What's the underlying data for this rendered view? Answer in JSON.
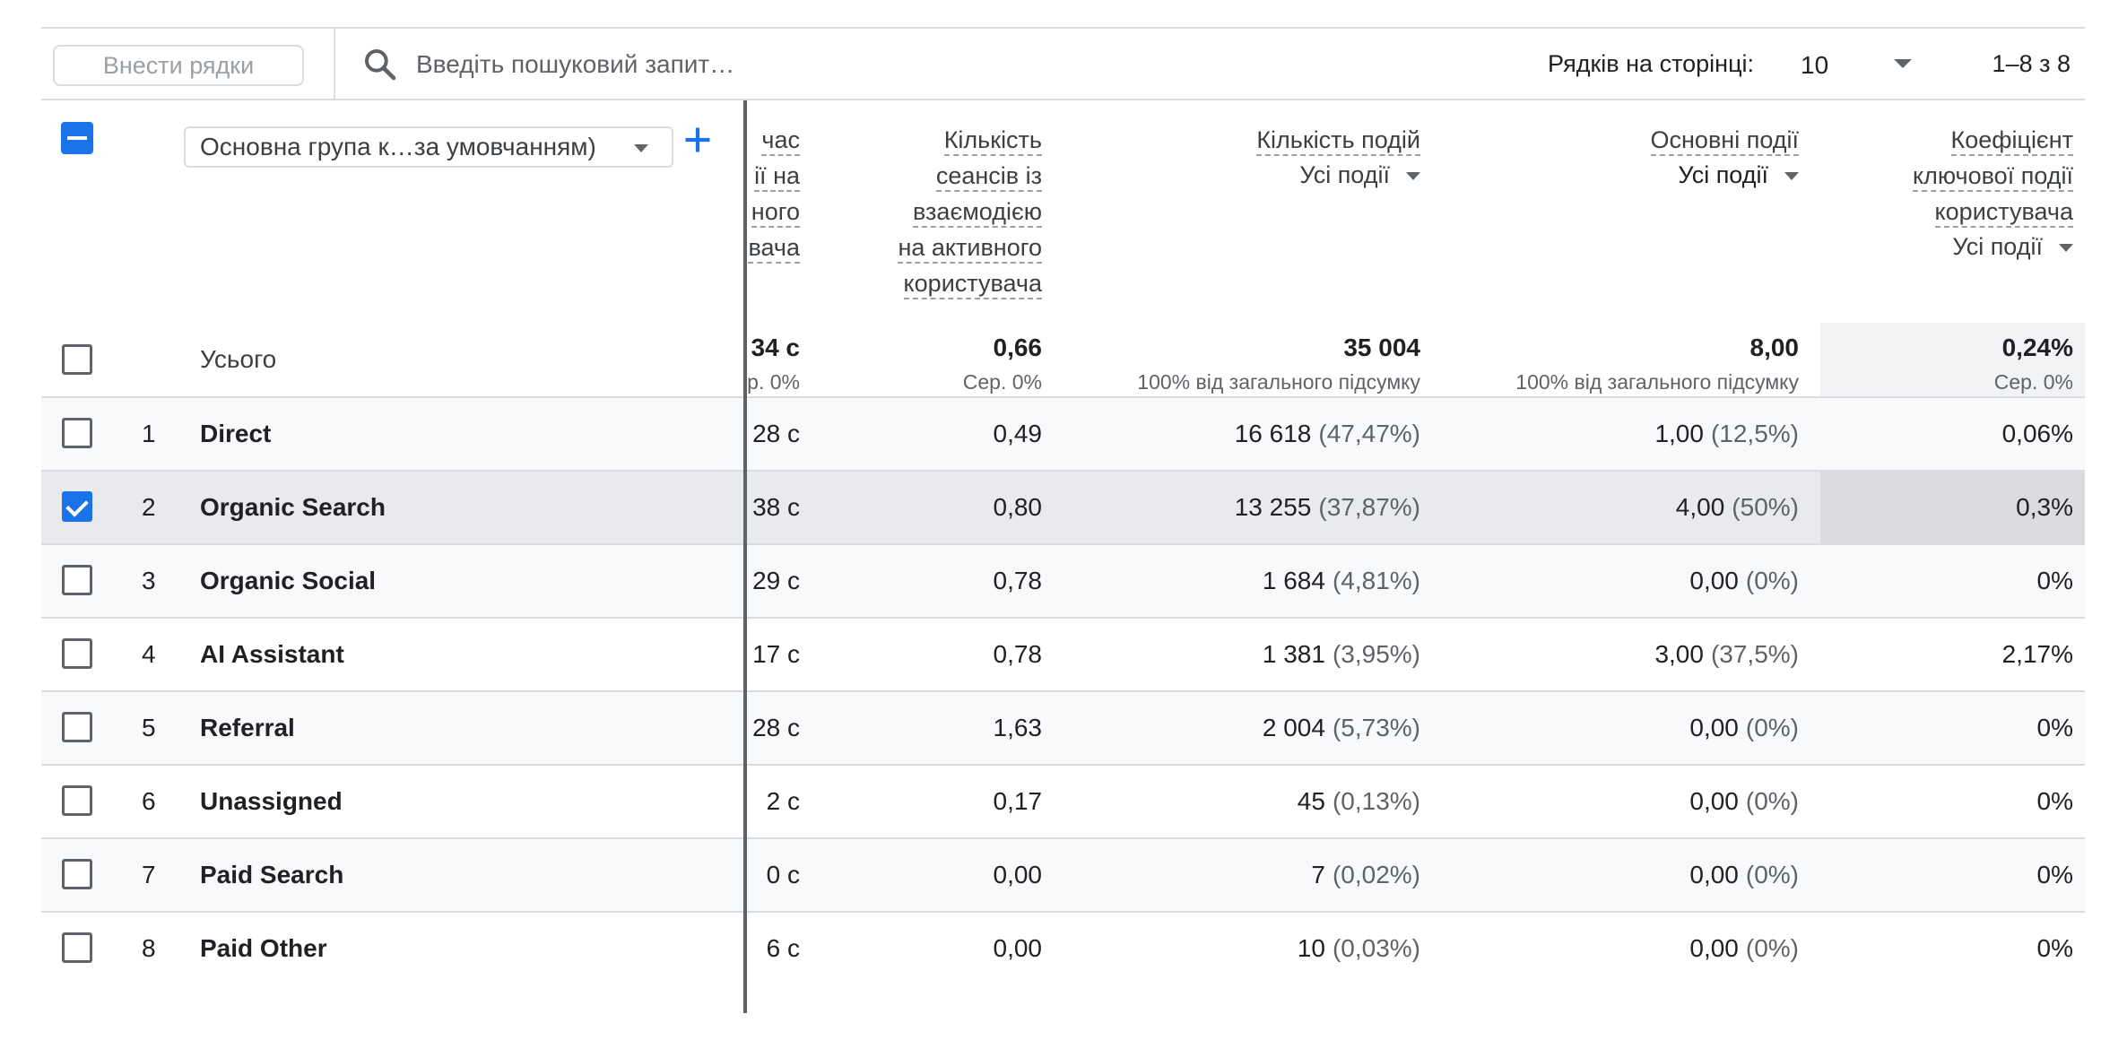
{
  "toolbar": {
    "add_rows_label": "Внести рядки",
    "search_placeholder": "Введіть пошуковий запит…",
    "rows_per_page_label": "Рядків на сторінці:",
    "rows_per_page_value": "10",
    "pagination": "1–8 з 8"
  },
  "dimension": {
    "label": "Основна група к…за умовчанням)"
  },
  "columns": {
    "c1_lines": [
      "час",
      "ії на",
      "ного",
      "вача"
    ],
    "c2_lines": [
      "Кількість",
      "сеансів із",
      "взаємодією",
      "на активного",
      "користувача"
    ],
    "c3_lines": [
      "Кількість подій"
    ],
    "c3_filter": "Усі події",
    "c4_lines": [
      "Основні події"
    ],
    "c4_filter": "Усі події",
    "c5_lines": [
      "Коефіцієнт",
      "ключової події",
      "користувача"
    ],
    "c5_filter": "Усі події"
  },
  "totals": {
    "label": "Усього",
    "c1": "34 с",
    "c1_sub": "р. 0%",
    "c2": "0,66",
    "c2_sub": "Сер. 0%",
    "c3": "35 004",
    "c3_sub": "100% від загального підсумку",
    "c4": "8,00",
    "c4_sub": "100% від загального підсумку",
    "c5": "0,24%",
    "c5_sub": "Сер. 0%"
  },
  "rows": [
    {
      "idx": "1",
      "name": "Direct",
      "c1": "28 с",
      "c2": "0,49",
      "c3": "16 618",
      "c3p": "(47,47%)",
      "c4": "1,00",
      "c4p": "(12,5%)",
      "c5": "0,06%",
      "checked": false
    },
    {
      "idx": "2",
      "name": "Organic Search",
      "c1": "38 с",
      "c2": "0,80",
      "c3": "13 255",
      "c3p": "(37,87%)",
      "c4": "4,00",
      "c4p": "(50%)",
      "c5": "0,3%",
      "checked": true
    },
    {
      "idx": "3",
      "name": "Organic Social",
      "c1": "29 с",
      "c2": "0,78",
      "c3": "1 684",
      "c3p": "(4,81%)",
      "c4": "0,00",
      "c4p": "(0%)",
      "c5": "0%",
      "checked": false
    },
    {
      "idx": "4",
      "name": "AI Assistant",
      "c1": "17 с",
      "c2": "0,78",
      "c3": "1 381",
      "c3p": "(3,95%)",
      "c4": "3,00",
      "c4p": "(37,5%)",
      "c5": "2,17%",
      "checked": false
    },
    {
      "idx": "5",
      "name": "Referral",
      "c1": "28 с",
      "c2": "1,63",
      "c3": "2 004",
      "c3p": "(5,73%)",
      "c4": "0,00",
      "c4p": "(0%)",
      "c5": "0%",
      "checked": false
    },
    {
      "idx": "6",
      "name": "Unassigned",
      "c1": "2 с",
      "c2": "0,17",
      "c3": "45",
      "c3p": "(0,13%)",
      "c4": "0,00",
      "c4p": "(0%)",
      "c5": "0%",
      "checked": false
    },
    {
      "idx": "7",
      "name": "Paid Search",
      "c1": "0 с",
      "c2": "0,00",
      "c3": "7",
      "c3p": "(0,02%)",
      "c4": "0,00",
      "c4p": "(0%)",
      "c5": "0%",
      "checked": false
    },
    {
      "idx": "8",
      "name": "Paid Other",
      "c1": "6 с",
      "c2": "0,00",
      "c3": "10",
      "c3p": "(0,03%)",
      "c4": "0,00",
      "c4p": "(0%)",
      "c5": "0%",
      "checked": false
    }
  ],
  "colors": {
    "accent": "#1a73e8",
    "row_alt": "#f8f9fa",
    "row_selected": "#e8eaed",
    "col_selected": "#dadce0"
  }
}
